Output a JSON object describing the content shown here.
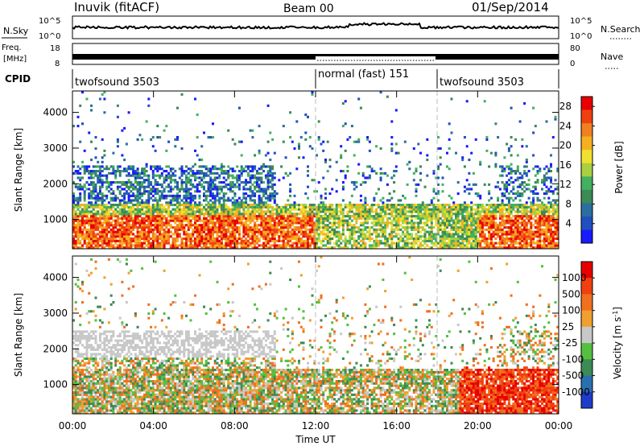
{
  "header": {
    "station": "Inuvik (fitACF)",
    "beam": "Beam 00",
    "date": "01/Sep/2014"
  },
  "strip_panels": {
    "nsky_label": "N.Sky",
    "nsearch_label": "N.Search",
    "nsky_ticks": [
      "10^5",
      "10^0"
    ],
    "nsearch_ticks": [
      "10^5",
      "10^0"
    ],
    "freq_label": "Freq.",
    "freq_unit": "[MHz]",
    "freq_ticks": [
      "18",
      "8"
    ],
    "nave_label": "Nave",
    "nave_ticks": [
      "80",
      "0"
    ],
    "cpid_label": "CPID",
    "cpid_segments": [
      {
        "label": "twofsound 3503",
        "start_h": 0,
        "end_h": 12
      },
      {
        "label": "normal (fast) 151",
        "start_h": 12,
        "end_h": 18
      },
      {
        "label": "twofsound 3503",
        "start_h": 18,
        "end_h": 24
      }
    ]
  },
  "chart_data": [
    {
      "type": "heatmap",
      "panel": "power",
      "title": "",
      "xlabel": "Time UT",
      "ylabel": "Slant Range [km]",
      "x_ticks": [
        "00:00",
        "04:00",
        "08:00",
        "12:00",
        "16:00",
        "20:00",
        "00:00"
      ],
      "xlim_hours": [
        0,
        24
      ],
      "y_ticks": [
        "1000",
        "2000",
        "3000",
        "4000"
      ],
      "ylim": [
        180,
        4600
      ],
      "vertical_markers_hours": [
        12,
        18
      ],
      "colorbar": {
        "label": "Power [dB]",
        "ticks": [
          "4",
          "8",
          "12",
          "16",
          "20",
          "24",
          "28"
        ],
        "range": [
          0,
          30
        ],
        "colors": [
          "#1a1aff",
          "#2050c0",
          "#2a6f9f",
          "#3c8a55",
          "#44b060",
          "#a8d040",
          "#f0e030",
          "#f5b020",
          "#f08020",
          "#f04010",
          "#e80000"
        ]
      }
    },
    {
      "type": "heatmap",
      "panel": "velocity",
      "title": "",
      "xlabel": "Time UT",
      "ylabel": "Slant Range [km]",
      "x_ticks": [
        "00:00",
        "04:00",
        "08:00",
        "12:00",
        "16:00",
        "20:00",
        "00:00"
      ],
      "xlim_hours": [
        0,
        24
      ],
      "y_ticks": [
        "1000",
        "2000",
        "3000",
        "4000"
      ],
      "ylim": [
        180,
        4600
      ],
      "vertical_markers_hours": [
        12,
        18
      ],
      "colorbar": {
        "label": "Velocity [m s^-1]",
        "ticks": [
          "1000",
          "500",
          "100",
          "25",
          "-25",
          "-100",
          "-500",
          "-1000"
        ],
        "colors": [
          "#1e3ccc",
          "#2a6fb0",
          "#3c8a55",
          "#55c040",
          "#c8c8c8",
          "#f0a030",
          "#f07020",
          "#f04010",
          "#e80000"
        ]
      }
    }
  ]
}
